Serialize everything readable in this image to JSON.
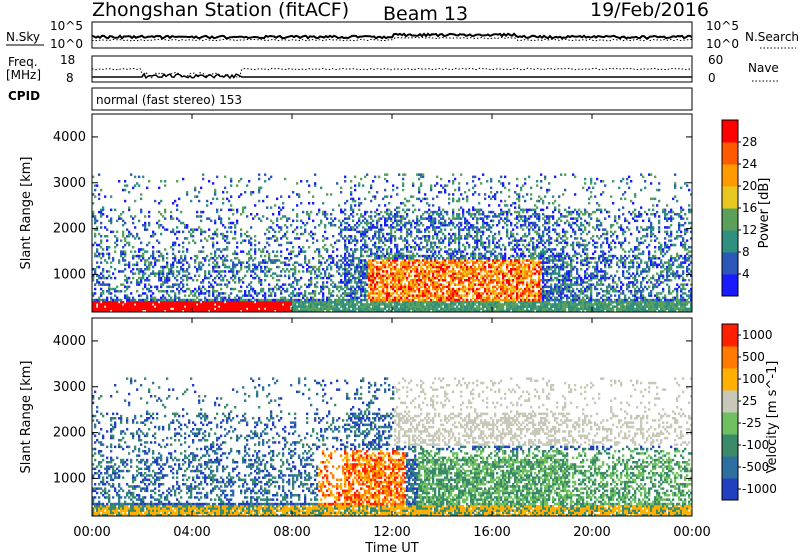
{
  "header": {
    "station": "Zhongshan Station (fitACF)",
    "beam": "Beam 13",
    "date": "19/Feb/2016"
  },
  "noise_panel": {
    "left_label": "N.Sky",
    "right_label": "N.Search",
    "left_ticks": [
      "10^5",
      "10^0"
    ],
    "right_ticks": [
      "10^5",
      "10^0"
    ]
  },
  "freq_panel": {
    "left_label_line1": "Freq.",
    "left_label_line2": "[MHz]",
    "right_label": "Nave",
    "left_ticks": [
      "18",
      "8"
    ],
    "right_ticks": [
      "60",
      "0"
    ]
  },
  "cpid": {
    "label": "CPID",
    "text": "normal (fast stereo) 153"
  },
  "x_axis": {
    "label": "Time UT",
    "ticks": [
      "00:00",
      "04:00",
      "08:00",
      "12:00",
      "16:00",
      "20:00",
      "00:00"
    ]
  },
  "chart_data": [
    {
      "type": "heatmap",
      "quantity": "Power",
      "ylabel": "Slant Range [km]",
      "y_ticks": [
        1000,
        2000,
        3000,
        4000
      ],
      "ylim": [
        180,
        4500
      ],
      "xlim_hours": [
        0,
        24
      ],
      "colorbar": {
        "label": "Power [dB]",
        "ticks": [
          "4",
          "8",
          "12",
          "16",
          "20",
          "24",
          "28"
        ],
        "colors": [
          "#1a1aff",
          "#2b57b8",
          "#2f8f80",
          "#5aa05a",
          "#e8c820",
          "#ff9a00",
          "#ff5a00",
          "#ff0000"
        ]
      }
    },
    {
      "type": "heatmap",
      "quantity": "Velocity",
      "ylabel": "Slant Range [km]",
      "y_ticks": [
        1000,
        2000,
        3000,
        4000
      ],
      "ylim": [
        180,
        4500
      ],
      "xlim_hours": [
        0,
        24
      ],
      "colorbar": {
        "label": "Velocity [m s^-1]",
        "ticks": [
          "1000",
          "500",
          "100",
          "25",
          "-25",
          "-100",
          "-500",
          "-1000"
        ],
        "colors": [
          "#2040c0",
          "#2e6ea0",
          "#3a8a6a",
          "#70c060",
          "#c8c8b8",
          "#ffb000",
          "#ff7a00",
          "#ff2000"
        ]
      }
    }
  ]
}
